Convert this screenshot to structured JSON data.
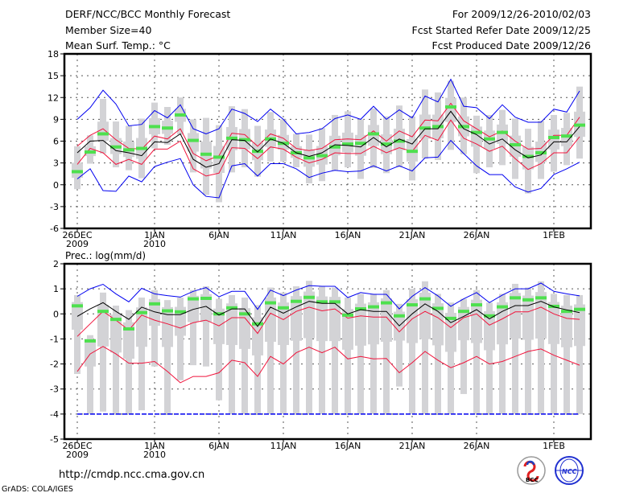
{
  "header": {
    "title": "DERF/NCC/BCC Monthly Forecast",
    "member": "Member Size=40",
    "period": "For 2009/12/26-2010/02/03",
    "started": "Fcst Started Refer Date 2009/12/25",
    "produced": "Fcst Produced Date 2009/12/26"
  },
  "footer": {
    "url": "http://cmdp.ncc.cma.gov.cn",
    "grads": "GrADS: COLA/IGES",
    "logo_left": "BCC",
    "logo_right": "NCC"
  },
  "colors": {
    "box": "#d3d3d6",
    "median": "#4ee04e",
    "mean": "#000000",
    "red": "#f0143c",
    "blue": "#0000f0"
  },
  "chart_data": [
    {
      "type": "line",
      "title": "Mean Surf. Temp.: °C",
      "ylim": [
        -6,
        18
      ],
      "yticks": [
        -6,
        -3,
        0,
        3,
        6,
        9,
        12,
        15,
        18
      ],
      "xticks": [
        {
          "day": 0,
          "label": "26DEC",
          "sub": "2009"
        },
        {
          "day": 6,
          "label": "1JAN",
          "sub": "2010"
        },
        {
          "day": 11,
          "label": "6JAN"
        },
        {
          "day": 16,
          "label": "11JAN"
        },
        {
          "day": 21,
          "label": "16JAN"
        },
        {
          "day": 26,
          "label": "21JAN"
        },
        {
          "day": 31,
          "label": "26JAN"
        },
        {
          "day": 37,
          "label": "1FEB"
        }
      ],
      "grid": true,
      "days": 40,
      "mean": [
        4.4,
        6.0,
        6.1,
        4.7,
        4.4,
        4.0,
        5.9,
        5.8,
        7.0,
        3.5,
        2.4,
        2.9,
        6.2,
        6.1,
        4.5,
        6.3,
        5.7,
        4.4,
        3.9,
        4.4,
        5.5,
        5.4,
        5.2,
        6.5,
        5.2,
        6.3,
        5.6,
        7.7,
        7.7,
        10.1,
        7.7,
        6.9,
        5.6,
        6.3,
        4.8,
        3.7,
        4.1,
        5.9,
        5.9,
        8.0
      ],
      "red_upper": [
        5.3,
        6.8,
        7.7,
        6.2,
        5.0,
        4.9,
        6.7,
        6.3,
        7.7,
        4.3,
        3.3,
        4.0,
        7.1,
        6.9,
        5.3,
        7.0,
        6.4,
        5.0,
        4.7,
        5.0,
        6.2,
        6.3,
        6.2,
        7.4,
        6.0,
        7.4,
        6.6,
        8.9,
        8.8,
        11.2,
        8.8,
        7.7,
        6.6,
        7.4,
        6.0,
        4.9,
        5.0,
        6.8,
        6.8,
        9.3
      ],
      "red_lower": [
        2.8,
        5.0,
        4.4,
        2.8,
        3.5,
        2.8,
        4.9,
        4.9,
        6.0,
        2.2,
        1.2,
        1.6,
        5.1,
        5.0,
        3.6,
        5.2,
        4.9,
        3.8,
        3.0,
        3.5,
        4.4,
        4.3,
        4.3,
        5.3,
        4.4,
        5.1,
        4.6,
        6.8,
        6.1,
        8.9,
        6.4,
        5.6,
        4.6,
        5.3,
        3.6,
        2.1,
        2.9,
        4.4,
        4.4,
        6.6
      ],
      "blue_upper": [
        9.0,
        10.6,
        13.0,
        11.1,
        8.1,
        8.3,
        10.2,
        9.2,
        11.0,
        7.7,
        7.0,
        7.7,
        10.4,
        9.8,
        8.7,
        10.4,
        9.0,
        7.0,
        7.2,
        7.7,
        9.1,
        9.6,
        9.0,
        10.8,
        9.0,
        10.3,
        9.2,
        12.2,
        11.4,
        14.5,
        10.8,
        10.6,
        9.1,
        11.0,
        9.3,
        8.6,
        8.6,
        10.4,
        10.0,
        12.9
      ],
      "blue_lower": [
        0.8,
        2.2,
        -0.8,
        -0.9,
        1.2,
        0.4,
        2.5,
        3.1,
        3.6,
        0.0,
        -1.6,
        -1.8,
        2.6,
        2.9,
        1.2,
        2.9,
        2.9,
        2.2,
        1.0,
        1.6,
        2.0,
        1.8,
        1.9,
        2.6,
        1.9,
        2.6,
        1.9,
        3.7,
        3.8,
        6.1,
        4.3,
        2.6,
        1.4,
        1.4,
        -0.3,
        -1.0,
        -0.5,
        1.4,
        2.2,
        3.1
      ],
      "median": [
        1.8,
        4.5,
        7.0,
        5.2,
        4.8,
        5.0,
        8.0,
        7.8,
        9.6,
        6.1,
        4.2,
        3.8,
        6.4,
        6.2,
        4.6,
        6.3,
        5.7,
        4.4,
        3.7,
        4.0,
        5.2,
        5.6,
        5.7,
        7.0,
        5.6,
        6.0,
        4.6,
        7.8,
        8.0,
        10.7,
        8.0,
        7.2,
        6.3,
        7.2,
        5.5,
        3.9,
        4.4,
        6.5,
        6.7,
        8.2
      ],
      "range_low": [
        -0.6,
        2.9,
        4.3,
        2.4,
        2.0,
        0.9,
        5.0,
        5.5,
        6.9,
        1.7,
        -1.4,
        -2.4,
        1.7,
        2.4,
        1.1,
        3.2,
        3.2,
        2.4,
        0.2,
        0.5,
        1.9,
        2.4,
        0.8,
        2.3,
        1.6,
        2.4,
        0.6,
        3.6,
        3.4,
        4.8,
        4.2,
        1.6,
        2.4,
        2.7,
        0.8,
        -1.2,
        0.8,
        1.8,
        2.7,
        3.6
      ],
      "range_high": [
        5.3,
        6.8,
        11.8,
        8.7,
        8.1,
        9.1,
        11.3,
        10.7,
        12.0,
        9.0,
        9.2,
        8.2,
        10.8,
        10.4,
        8.1,
        10.0,
        9.0,
        7.0,
        6.9,
        7.8,
        9.6,
        10.1,
        9.0,
        10.5,
        9.4,
        10.9,
        9.4,
        13.1,
        12.7,
        14.3,
        12.0,
        9.5,
        9.6,
        10.3,
        9.1,
        7.7,
        8.8,
        9.6,
        9.9,
        13.5
      ]
    },
    {
      "type": "line",
      "title": "Prec.: log(mm/d)",
      "ylim": [
        -5,
        2
      ],
      "yticks": [
        -5,
        -4,
        -3,
        -2,
        -1,
        0,
        1,
        2
      ],
      "xticks": [
        {
          "day": 0,
          "label": "26DEC",
          "sub": "2009"
        },
        {
          "day": 6,
          "label": "1JAN",
          "sub": "2010"
        },
        {
          "day": 11,
          "label": "6JAN"
        },
        {
          "day": 16,
          "label": "11JAN"
        },
        {
          "day": 21,
          "label": "16JAN"
        },
        {
          "day": 26,
          "label": "21JAN"
        },
        {
          "day": 31,
          "label": "26JAN"
        },
        {
          "day": 37,
          "label": "1FEB"
        }
      ],
      "grid": true,
      "days": 40,
      "mean": [
        -0.1,
        0.2,
        0.45,
        0.1,
        -0.22,
        0.27,
        0.08,
        -0.03,
        -0.03,
        0.18,
        0.3,
        -0.05,
        0.2,
        0.2,
        -0.5,
        0.27,
        0.03,
        0.28,
        0.5,
        0.42,
        0.42,
        0.0,
        0.17,
        0.1,
        0.1,
        -0.48,
        0.0,
        0.4,
        0.1,
        -0.35,
        -0.1,
        0.17,
        -0.2,
        0.1,
        0.33,
        0.33,
        0.5,
        0.28,
        0.16,
        0.05
      ],
      "red_upper": [
        -0.9,
        -0.4,
        0.1,
        -0.25,
        -0.65,
        -0.05,
        -0.25,
        -0.4,
        -0.57,
        -0.35,
        -0.25,
        -0.48,
        -0.15,
        -0.15,
        -0.78,
        0.03,
        -0.23,
        0.1,
        0.27,
        0.12,
        0.2,
        -0.17,
        -0.08,
        -0.13,
        -0.13,
        -0.72,
        -0.2,
        0.1,
        -0.15,
        -0.55,
        -0.15,
        0.0,
        -0.45,
        -0.2,
        0.08,
        0.08,
        0.27,
        0.0,
        -0.18,
        -0.22
      ],
      "red_lower": [
        -2.3,
        -1.6,
        -1.3,
        -1.6,
        -1.97,
        -1.97,
        -1.9,
        -2.3,
        -2.75,
        -2.5,
        -2.5,
        -2.35,
        -1.85,
        -1.95,
        -2.5,
        -1.7,
        -2.0,
        -1.55,
        -1.33,
        -1.55,
        -1.33,
        -1.8,
        -1.7,
        -1.8,
        -1.78,
        -2.35,
        -1.95,
        -1.5,
        -1.85,
        -2.15,
        -1.95,
        -1.7,
        -2.0,
        -1.9,
        -1.7,
        -1.5,
        -1.4,
        -1.65,
        -1.85,
        -2.05
      ],
      "blue_upper": [
        0.7,
        1.0,
        1.18,
        0.8,
        0.48,
        1.02,
        0.8,
        0.73,
        0.67,
        0.9,
        1.05,
        0.68,
        0.9,
        0.9,
        0.18,
        0.95,
        0.73,
        0.95,
        1.13,
        1.1,
        1.1,
        0.65,
        0.85,
        0.78,
        0.78,
        0.2,
        0.7,
        1.05,
        0.72,
        0.3,
        0.6,
        0.85,
        0.45,
        0.75,
        1.0,
        1.0,
        1.23,
        0.9,
        0.8,
        0.72
      ],
      "blue_lower": [
        -4,
        -4,
        -4,
        -4,
        -4,
        -4,
        -4,
        -4,
        -4,
        -4,
        -4,
        -4,
        -4,
        -4,
        -4,
        -4,
        -4,
        -4,
        -4,
        -4,
        -4,
        -4,
        -4,
        -4,
        -4,
        -4,
        -4,
        -4,
        -4,
        -4,
        -4,
        -4,
        -4,
        -4,
        -4,
        -4,
        -4,
        -4,
        -4,
        -4
      ],
      "median": [
        0.32,
        -1.08,
        0.1,
        -0.22,
        -0.6,
        0.05,
        0.4,
        0.12,
        0.08,
        0.6,
        0.62,
        0.0,
        0.24,
        0.0,
        -0.4,
        0.44,
        0.24,
        0.5,
        0.66,
        0.48,
        0.48,
        -0.05,
        0.2,
        0.28,
        0.44,
        -0.08,
        0.36,
        0.6,
        0.22,
        -0.18,
        0.1,
        0.36,
        -0.08,
        0.28,
        0.64,
        0.56,
        0.64,
        0.3,
        0.1,
        0.18
      ],
      "range_low": [
        -2.4,
        -4,
        -3.9,
        -4,
        -4,
        -3.85,
        -2.1,
        -4,
        -2.65,
        -2.05,
        -2.1,
        -3.45,
        -4,
        -4,
        -4,
        -4,
        -4,
        -4,
        -4,
        -4,
        -4,
        -4,
        -4,
        -4,
        -4,
        -2.9,
        -4,
        -4,
        -4,
        -4,
        -3.2,
        -4,
        -4,
        -4,
        -4,
        -4,
        -4,
        -4,
        -4,
        -4
      ],
      "range_high": [
        0.75,
        -0.85,
        0.85,
        0.33,
        0.15,
        0.65,
        0.95,
        0.55,
        0.65,
        0.95,
        1.1,
        0.6,
        0.75,
        0.65,
        0.35,
        1.05,
        0.85,
        1.1,
        1.32,
        1.1,
        1.05,
        0.65,
        0.8,
        0.8,
        0.95,
        0.4,
        1.0,
        1.3,
        0.8,
        0.45,
        0.6,
        0.95,
        0.45,
        0.8,
        1.2,
        1.05,
        1.3,
        0.8,
        0.75,
        0.75
      ]
    }
  ]
}
